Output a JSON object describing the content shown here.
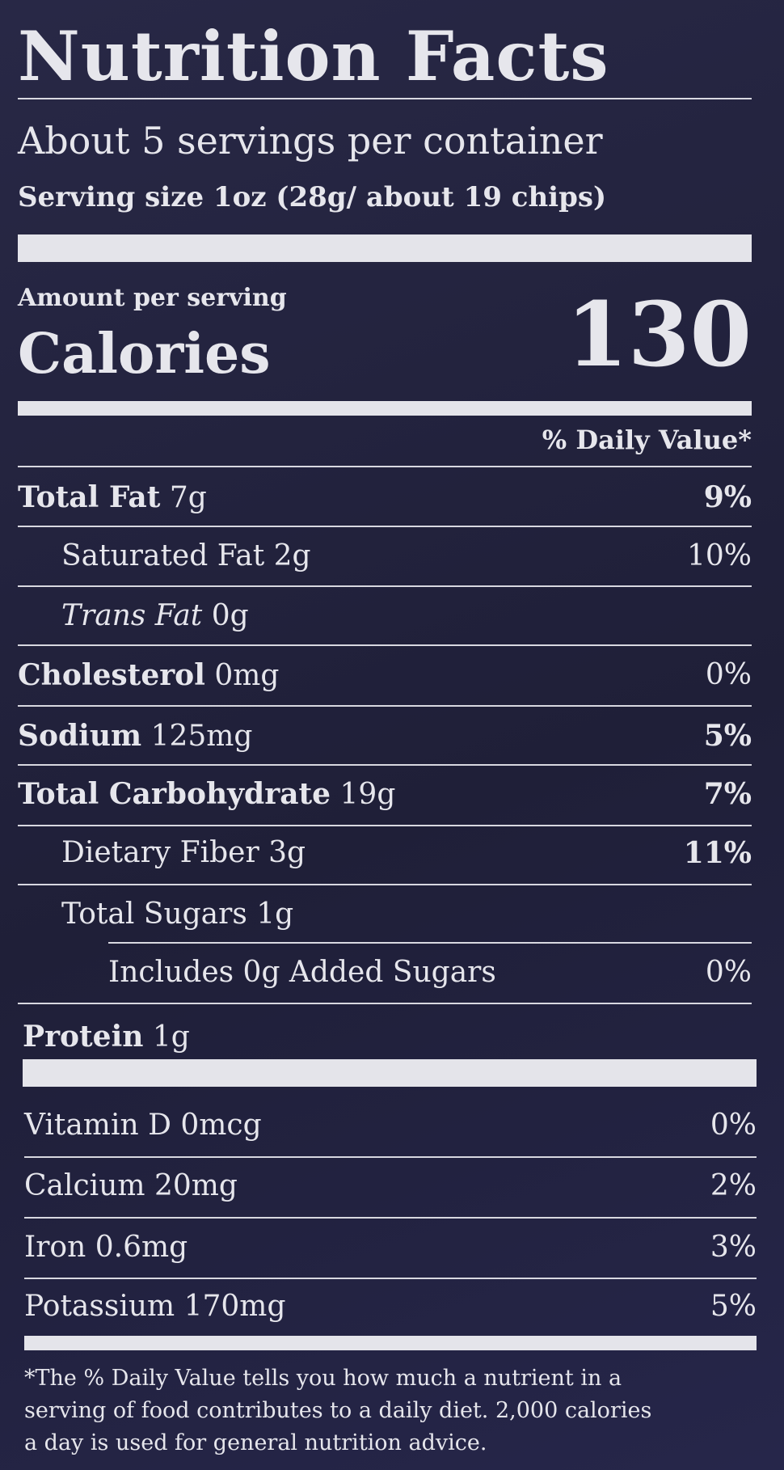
{
  "header": {
    "title": "Nutrition Facts",
    "servings_per_container": "About 5 servings per container",
    "serving_size": "Serving size 1oz (28g/ about 19 chips)"
  },
  "calories": {
    "amount_per_serving": "Amount per serving",
    "label": "Calories",
    "value": "130"
  },
  "daily_value_header": "% Daily Value*",
  "nutrients": [
    {
      "name": "Total Fat",
      "amount": "7g",
      "dv": "9%"
    },
    {
      "name": "Saturated Fat",
      "amount": "2g",
      "dv": "10%"
    },
    {
      "name": "Trans Fat",
      "amount": "0g"
    },
    {
      "name": "Cholesterol",
      "amount": "0mg",
      "dv": "0%"
    },
    {
      "name": "Sodium",
      "amount": "125mg",
      "dv": "5%"
    },
    {
      "name": "Total Carbohydrate",
      "amount": "19g",
      "dv": "7%"
    },
    {
      "name": "Dietary Fiber",
      "amount": "3g",
      "dv": "11%"
    },
    {
      "name": "Total Sugars",
      "amount": "1g"
    },
    {
      "name": "Includes 0g Added Sugars",
      "dv": "0%"
    },
    {
      "name": "Protein",
      "amount": "1g"
    }
  ],
  "vitamins": [
    {
      "name": "Vitamin D 0mcg",
      "dv": "0%"
    },
    {
      "name": "Calcium 20mg",
      "dv": "2%"
    },
    {
      "name": "Iron 0.6mg",
      "dv": "3%"
    },
    {
      "name": "Potassium 170mg",
      "dv": "5%"
    }
  ],
  "footnote": [
    "*The % Daily Value tells you how much a nutrient in a",
    "serving of food contributes to a daily diet. 2,000 calories",
    "a day is used for general nutrition advice."
  ]
}
